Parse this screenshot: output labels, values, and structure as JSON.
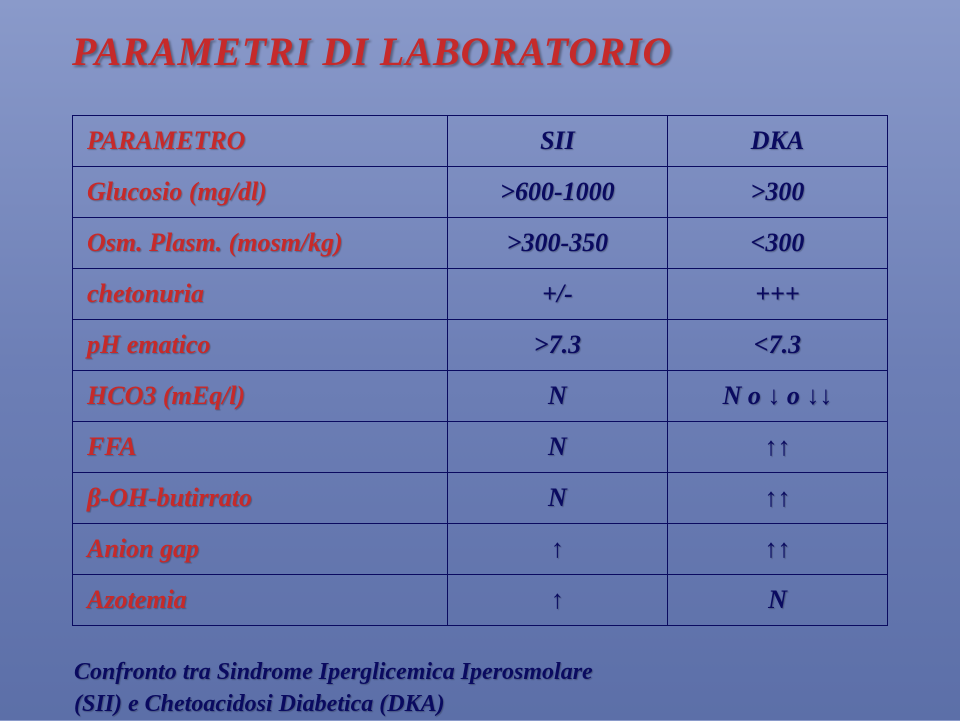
{
  "slide": {
    "title": "PARAMETRI DI LABORATORIO",
    "title_color": "#c62a2a",
    "title_fontsize": 40,
    "background_gradient": [
      "#8a9aca",
      "#6d7fb6",
      "#5c6fa8"
    ],
    "table": {
      "border_color": "#0a0a60",
      "param_color": "#c62a2a",
      "value_color": "#0a0a60",
      "cell_fontsize": 26,
      "columns": [
        {
          "key": "param",
          "label": "PARAMETRO",
          "width_pct": 46,
          "align": "left"
        },
        {
          "key": "sii",
          "label": "SII",
          "width_pct": 27,
          "align": "center"
        },
        {
          "key": "dka",
          "label": "DKA",
          "width_pct": 27,
          "align": "center"
        }
      ],
      "rows": [
        {
          "param": "Glucosio (mg/dl)",
          "sii": ">600-1000",
          "dka": ">300"
        },
        {
          "param": "Osm. Plasm. (mosm/kg)",
          "sii": ">300-350",
          "dka": "<300"
        },
        {
          "param": "chetonuria",
          "sii": "+/-",
          "dka": "+++"
        },
        {
          "param": "pH ematico",
          "sii": ">7.3",
          "dka": "<7.3"
        },
        {
          "param": "HCO3 (mEq/l)",
          "sii": "N",
          "dka": "N o ↓ o ↓↓"
        },
        {
          "param": "FFA",
          "sii": "N",
          "dka": "↑↑"
        },
        {
          "param": "β-OH-butirrato",
          "sii": "N",
          "dka": "↑↑"
        },
        {
          "param": "Anion gap",
          "sii": "↑",
          "dka": "↑↑"
        },
        {
          "param": "Azotemia",
          "sii": "↑",
          "dka": "N"
        }
      ]
    },
    "caption_line1": "Confronto tra Sindrome Iperglicemica Iperosmolare",
    "caption_line2": "(SII) e Chetoacidosi Diabetica (DKA)",
    "caption_color": "#0a0a60",
    "caption_fontsize": 24
  }
}
